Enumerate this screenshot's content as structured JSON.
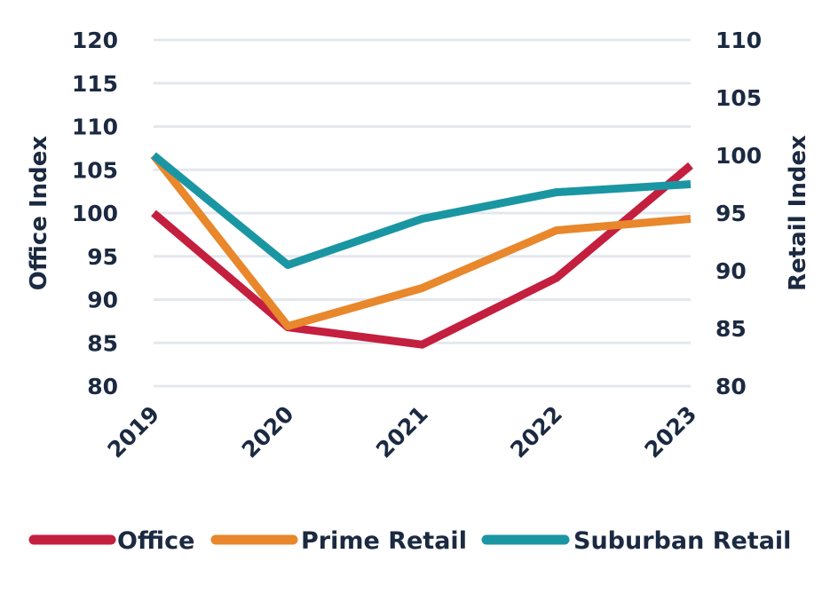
{
  "chart_data": {
    "type": "line",
    "categories": [
      "2019",
      "2020",
      "2021",
      "2022",
      "2023"
    ],
    "left_axis": {
      "label": "Office Index",
      "ylim": [
        80,
        120
      ],
      "ticks": [
        "80",
        "85",
        "90",
        "95",
        "100",
        "105",
        "110",
        "115",
        "120"
      ]
    },
    "right_axis": {
      "label": "Retail Index",
      "ylim": [
        80,
        110
      ],
      "ticks": [
        "80",
        "85",
        "90",
        "95",
        "100",
        "105",
        "110"
      ]
    },
    "grid": true,
    "legend": "bottom",
    "series": [
      {
        "name": "Office",
        "axis": "left",
        "color": "#c41f3e",
        "values": [
          100,
          86.8,
          84.8,
          92.5,
          105.5
        ]
      },
      {
        "name": "Prime Retail",
        "axis": "right",
        "color": "#e8872b",
        "values": [
          100,
          85.2,
          88.5,
          93.5,
          94.5
        ]
      },
      {
        "name": "Suburban Retail",
        "axis": "right",
        "color": "#1a96a3",
        "values": [
          100,
          90.5,
          94.5,
          96.8,
          97.5
        ]
      }
    ]
  }
}
